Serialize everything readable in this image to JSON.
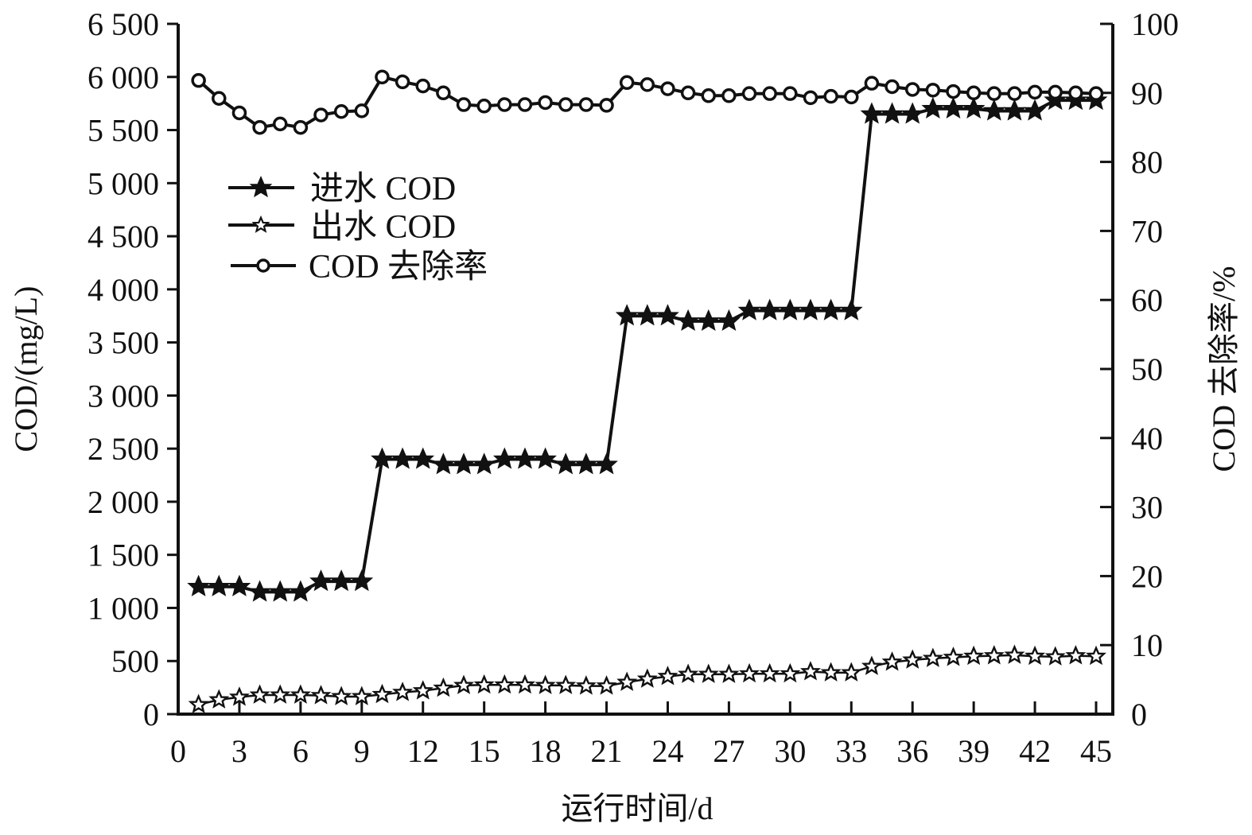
{
  "chart_data": {
    "type": "line",
    "title": "",
    "xlabel": "运行时间/d",
    "ylabel_left": "COD/(mg/L)",
    "ylabel_right": "COD 去除率/%",
    "xlim": [
      0,
      45
    ],
    "ylim_left": [
      0,
      6500
    ],
    "ylim_right": [
      0,
      100
    ],
    "x_ticks": [
      0,
      3,
      6,
      9,
      12,
      15,
      18,
      21,
      24,
      27,
      30,
      33,
      36,
      39,
      42,
      45
    ],
    "y_left_ticks": [
      0,
      500,
      1000,
      1500,
      2000,
      2500,
      3000,
      3500,
      4000,
      4500,
      5000,
      5500,
      6000,
      6500
    ],
    "y_left_tick_labels": [
      "0",
      "500",
      "1 000",
      "1 500",
      "2 000",
      "2 500",
      "3 000",
      "3 500",
      "4 000",
      "4 500",
      "5 000",
      "5 500",
      "6 000",
      "6 500"
    ],
    "y_right_ticks": [
      0,
      10,
      20,
      30,
      40,
      50,
      60,
      70,
      80,
      90,
      100
    ],
    "grid": false,
    "legend_position": "upper-left (inside)",
    "x": [
      1,
      2,
      3,
      4,
      5,
      6,
      7,
      8,
      9,
      10,
      11,
      12,
      13,
      14,
      15,
      16,
      17,
      18,
      19,
      20,
      21,
      22,
      23,
      24,
      25,
      26,
      27,
      28,
      29,
      30,
      31,
      32,
      33,
      34,
      35,
      36,
      37,
      38,
      39,
      40,
      41,
      42,
      43,
      44,
      45
    ],
    "series": [
      {
        "name": "进水 COD",
        "axis": "left",
        "marker": "filled-star",
        "values": [
          1200,
          1200,
          1200,
          1150,
          1150,
          1150,
          1250,
          1250,
          1250,
          2400,
          2400,
          2400,
          2350,
          2350,
          2350,
          2400,
          2400,
          2400,
          2350,
          2350,
          2350,
          3750,
          3750,
          3750,
          3700,
          3700,
          3700,
          3800,
          3800,
          3800,
          3800,
          3800,
          3800,
          5650,
          5650,
          5650,
          5700,
          5700,
          5700,
          5680,
          5680,
          5680,
          5780,
          5780,
          5780
        ]
      },
      {
        "name": "出水 COD",
        "axis": "left",
        "marker": "open-star",
        "values": [
          90,
          135,
          160,
          180,
          180,
          180,
          175,
          165,
          165,
          185,
          205,
          220,
          245,
          270,
          275,
          275,
          275,
          270,
          270,
          265,
          265,
          300,
          330,
          355,
          375,
          375,
          375,
          380,
          380,
          380,
          400,
          390,
          390,
          450,
          490,
          510,
          525,
          535,
          545,
          550,
          555,
          545,
          540,
          550,
          545
        ]
      },
      {
        "name": "COD 去除率",
        "axis": "right",
        "marker": "open-circle",
        "values": [
          91.8,
          89.2,
          87.1,
          85.0,
          85.5,
          85.0,
          86.8,
          87.3,
          87.4,
          92.3,
          91.6,
          91.0,
          90.0,
          88.3,
          88.1,
          88.3,
          88.3,
          88.6,
          88.3,
          88.3,
          88.2,
          91.5,
          91.2,
          90.6,
          90.0,
          89.6,
          89.6,
          89.9,
          89.9,
          89.9,
          89.3,
          89.5,
          89.4,
          91.4,
          90.9,
          90.5,
          90.4,
          90.2,
          90.0,
          89.9,
          89.9,
          90.1,
          90.1,
          90.0,
          89.9
        ]
      }
    ]
  },
  "legend": {
    "items": [
      {
        "label": "进水 COD"
      },
      {
        "label": "出水 COD"
      },
      {
        "label": "COD 去除率"
      }
    ]
  },
  "colors": {
    "line": "#111111",
    "background": "#ffffff"
  }
}
